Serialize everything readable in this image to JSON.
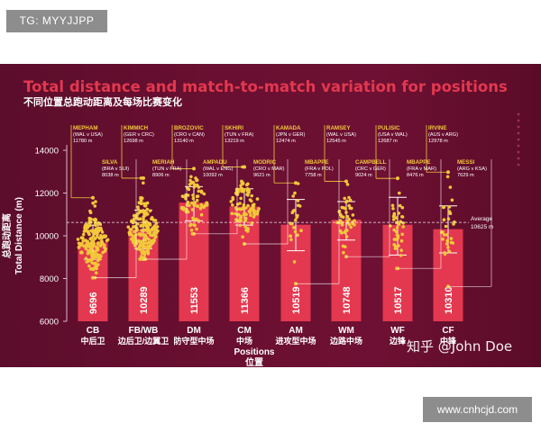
{
  "watermark_top_left": "TG: MYYJJPP",
  "watermark_bottom_right": "www.cnhcjd.com",
  "watermark_zhihu": "知乎 @John Doe",
  "chart_data": {
    "type": "bar",
    "title": "Total distance and match-to-match variation for positions",
    "subtitle": "不同位置总跑动距离及每场比赛变化",
    "ylabel_cn": "总跑动距离",
    "ylabel_en": "Total Distance (m)",
    "xlabel_en": "Positions",
    "xlabel_cn": "位置",
    "ylim": [
      6000,
      14000
    ],
    "yticks": [
      6000,
      8000,
      10000,
      12000,
      14000
    ],
    "average": {
      "label": "Average",
      "value_text": "10625 m",
      "value": 10625
    },
    "categories": [
      {
        "code": "CB",
        "cn": "中后卫"
      },
      {
        "code": "FB/WB",
        "cn": "边后卫/边翼卫"
      },
      {
        "code": "DM",
        "cn": "防守型中场"
      },
      {
        "code": "CM",
        "cn": "中场"
      },
      {
        "code": "AM",
        "cn": "进攻型中场"
      },
      {
        "code": "WM",
        "cn": "边路中场"
      },
      {
        "code": "WF",
        "cn": "边锋"
      },
      {
        "code": "CF",
        "cn": "中锋"
      }
    ],
    "values": [
      9696,
      10289,
      11553,
      11366,
      10519,
      10748,
      10517,
      10310
    ],
    "value_labels": [
      "9696",
      "10289",
      "11553",
      "11366",
      "10519",
      "10748",
      "10517",
      "10310"
    ],
    "max_annotations": [
      {
        "name": "MEPHAM",
        "match": "(WAL v USA)",
        "dist": "11780 m",
        "value": 11780
      },
      {
        "name": "KIMMICH",
        "match": "(GER v CRC)",
        "dist": "12698 m",
        "value": 12698
      },
      {
        "name": "BROZOVIC",
        "match": "(CRO v CAN)",
        "dist": "13140 m",
        "value": 13140
      },
      {
        "name": "SKHIRI",
        "match": "(TUN v FRA)",
        "dist": "13219 m",
        "value": 13219
      },
      {
        "name": "KAMADA",
        "match": "(JPN v GER)",
        "dist": "12474 m",
        "value": 12474
      },
      {
        "name": "RAMSEY",
        "match": "(WAL v USA)",
        "dist": "12545 m",
        "value": 12545
      },
      {
        "name": "PULISIC",
        "match": "(USA v WAL)",
        "dist": "12687 m",
        "value": 12687
      },
      {
        "name": "IRVINE",
        "match": "(AUS v ARG)",
        "dist": "12978 m",
        "value": 12978
      }
    ],
    "min_annotations": [
      {
        "name": "SILVA",
        "match": "(BRA v SUI)",
        "dist": "8038 m",
        "value": 8038
      },
      {
        "name": "MERIAH",
        "match": "(TUN v FRA)",
        "dist": "8906 m",
        "value": 8906
      },
      {
        "name": "AMPADU",
        "match": "(WAL v ENG)",
        "dist": "10092 m",
        "value": 10092
      },
      {
        "name": "MODRIC",
        "match": "(CRO v MAR)",
        "dist": "9621 m",
        "value": 9621
      },
      {
        "name": "MBAPPE",
        "match": "(FRA v POL)",
        "dist": "7758 m",
        "value": 7758
      },
      {
        "name": "CAMPBELL",
        "match": "(CRC v GER)",
        "dist": "9024 m",
        "value": 9024
      },
      {
        "name": "MBAPPE",
        "match": "(FRA v MAR)",
        "dist": "8476 m",
        "value": 8476
      },
      {
        "name": "MESSI",
        "match": "(ARG v KSA)",
        "dist": "7629 m",
        "value": 7629
      }
    ],
    "spread_lines": [
      {
        "lo": 8900,
        "hi": 10500
      },
      {
        "lo": 9400,
        "hi": 11200
      },
      {
        "lo": 10700,
        "hi": 12300
      },
      {
        "lo": 10500,
        "hi": 12200
      },
      {
        "lo": 9300,
        "hi": 11700
      },
      {
        "lo": 9800,
        "hi": 11600
      },
      {
        "lo": 9100,
        "hi": 11800
      },
      {
        "lo": 9200,
        "hi": 11400
      }
    ],
    "dot_counts": [
      180,
      190,
      70,
      95,
      22,
      45,
      38,
      28
    ],
    "colors": {
      "background": "#6a0f31",
      "bar": "#e3384f",
      "title": "#e3384f",
      "dots": "#f2c83a",
      "annotation": "#f2c83a",
      "text": "#ffffff",
      "axis": "#d9b9c3"
    },
    "legend": "none",
    "grid": false
  }
}
